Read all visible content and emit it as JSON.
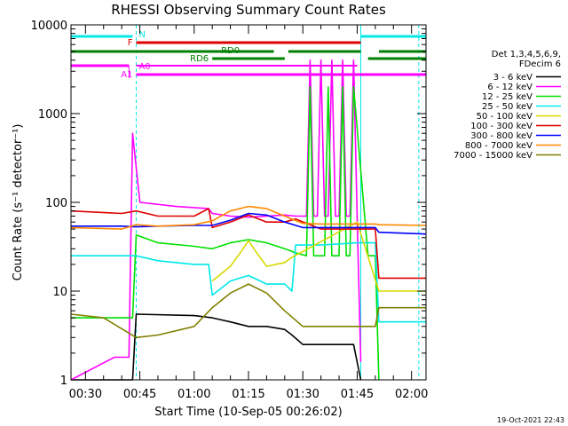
{
  "chart_data": {
    "type": "line",
    "title": "RHESSI Observing Summary Count Rates",
    "xlabel": "Start Time (10-Sep-05 00:26:02)",
    "ylabel": "Count Rate (s⁻¹ detector⁻¹)",
    "y_scale": "log",
    "ylim": [
      1,
      10000
    ],
    "xlim": [
      "00:26",
      "02:04"
    ],
    "x_tick_labels": [
      "00:30",
      "00:45",
      "01:00",
      "01:15",
      "01:30",
      "01:45",
      "02:00"
    ],
    "y_tick_labels": [
      "1",
      "10",
      "100",
      "1000",
      "10000"
    ],
    "timestamp": "19-Oct-2021 22:43",
    "legend": {
      "position": "right",
      "header": [
        "Det 1,3,4,5,6,9,",
        "FDecim 6"
      ],
      "entries": [
        {
          "label": "3 - 6 keV",
          "color": "#000000"
        },
        {
          "label": "6 - 12 keV",
          "color": "#ff00ff"
        },
        {
          "label": "12 - 25 keV",
          "color": "#00e000"
        },
        {
          "label": "25 - 50 keV",
          "color": "#00e8e8"
        },
        {
          "label": "50 - 100 keV",
          "color": "#d8d800"
        },
        {
          "label": "100 - 300 keV",
          "color": "#e00000"
        },
        {
          "label": "300 - 800 keV",
          "color": "#0000ff"
        },
        {
          "label": "800 - 7000 keV",
          "color": "#ff8800"
        },
        {
          "label": "7000 - 15000 keV",
          "color": "#808000"
        }
      ]
    },
    "flags": [
      {
        "label": "N",
        "color": "#00e8e8"
      },
      {
        "label": "F",
        "color": "#e00000"
      },
      {
        "label": "RD0",
        "color": "#008000"
      },
      {
        "label": "RD6",
        "color": "#008000"
      },
      {
        "label": "A0",
        "color": "#ff00ff"
      },
      {
        "label": "A1",
        "color": "#ff00ff"
      }
    ],
    "series": [
      {
        "name": "3 - 6 keV",
        "color": "#000000",
        "x": [
          "00:26",
          "00:40",
          "00:43",
          "00:44",
          "01:00",
          "01:05",
          "01:10",
          "01:15",
          "01:20",
          "01:25",
          "01:27",
          "01:30",
          "01:35",
          "01:40",
          "01:44",
          "01:46"
        ],
        "values": [
          1,
          1,
          1,
          5.5,
          5.3,
          5,
          4.5,
          4,
          4,
          3.7,
          3.2,
          2.5,
          2.5,
          2.5,
          2.5,
          1
        ]
      },
      {
        "name": "6 - 12 keV",
        "color": "#ff00ff",
        "x": [
          "00:26",
          "00:38",
          "00:42",
          "00:43",
          "00:45",
          "00:55",
          "01:04",
          "01:05",
          "01:10",
          "01:15",
          "01:20",
          "01:25",
          "01:28",
          "01:31",
          "01:32",
          "01:33",
          "01:34",
          "01:35",
          "01:36",
          "01:37",
          "01:38",
          "01:39",
          "01:40",
          "01:41",
          "01:42",
          "01:43",
          "01:44",
          "01:45",
          "01:46"
        ],
        "values": [
          1,
          1.8,
          1.8,
          600,
          100,
          90,
          85,
          75,
          70,
          68,
          70,
          72,
          70,
          70,
          4000,
          70,
          70,
          4000,
          70,
          70,
          4000,
          70,
          70,
          4000,
          70,
          70,
          4000,
          70,
          1.6
        ]
      },
      {
        "name": "12 - 25 keV",
        "color": "#00e000",
        "x": [
          "00:26",
          "00:43",
          "00:44",
          "00:50",
          "01:00",
          "01:05",
          "01:10",
          "01:15",
          "01:20",
          "01:25",
          "01:28",
          "01:31",
          "01:32",
          "01:33",
          "01:36",
          "01:37",
          "01:38",
          "01:40",
          "01:41",
          "01:42",
          "01:43",
          "01:44",
          "01:48",
          "01:50",
          "01:51"
        ],
        "values": [
          5,
          5,
          43,
          35,
          32,
          30,
          35,
          38,
          35,
          30,
          27,
          25,
          2000,
          25,
          25,
          2000,
          25,
          25,
          2000,
          25,
          25,
          2000,
          25,
          25,
          1
        ]
      },
      {
        "name": "25 - 50 keV",
        "color": "#00e8e8",
        "x": [
          "00:26",
          "00:44",
          "00:50",
          "01:00",
          "01:04",
          "01:05",
          "01:10",
          "01:15",
          "01:20",
          "01:25",
          "01:27",
          "01:28",
          "01:35",
          "01:45",
          "01:50",
          "01:51",
          "02:00",
          "02:04"
        ],
        "values": [
          25,
          25,
          22,
          20,
          20,
          9,
          13,
          15,
          12,
          12,
          10,
          33,
          33,
          35,
          35,
          4.5,
          4.5,
          4.5
        ]
      },
      {
        "name": "50 - 100 keV",
        "color": "#d8d800",
        "x": [
          "01:05",
          "01:10",
          "01:13",
          "01:15",
          "01:17",
          "01:20",
          "01:25",
          "01:27",
          "01:45",
          "01:51",
          "02:04"
        ],
        "values": [
          13,
          19,
          28,
          37,
          28,
          19,
          21,
          24,
          60,
          10,
          10
        ]
      },
      {
        "name": "100 - 300 keV",
        "color": "#e00000",
        "x": [
          "00:26",
          "00:40",
          "00:44",
          "00:50",
          "01:00",
          "01:04",
          "01:05",
          "01:10",
          "01:15",
          "01:20",
          "01:25",
          "01:28",
          "01:35",
          "01:45",
          "01:50",
          "01:51",
          "02:04"
        ],
        "values": [
          80,
          75,
          80,
          70,
          70,
          85,
          52,
          60,
          72,
          60,
          60,
          65,
          50,
          50,
          50,
          14,
          14
        ]
      },
      {
        "name": "300 - 800 keV",
        "color": "#0000ff",
        "x": [
          "00:26",
          "00:40",
          "00:44",
          "00:50",
          "01:00",
          "01:05",
          "01:10",
          "01:15",
          "01:20",
          "01:25",
          "01:30",
          "01:35",
          "01:45",
          "01:50",
          "01:51",
          "02:04"
        ],
        "values": [
          54,
          54,
          53,
          54,
          55,
          55,
          63,
          75,
          72,
          60,
          52,
          52,
          52,
          52,
          46,
          44
        ]
      },
      {
        "name": "800 - 7000 keV",
        "color": "#ff8800",
        "x": [
          "00:26",
          "00:40",
          "00:44",
          "00:50",
          "01:00",
          "01:05",
          "01:10",
          "01:15",
          "01:20",
          "01:25",
          "01:30",
          "01:35",
          "01:45",
          "01:50",
          "01:51",
          "02:04"
        ],
        "values": [
          52,
          50,
          56,
          54,
          56,
          62,
          80,
          90,
          85,
          70,
          58,
          57,
          57,
          57,
          56,
          55
        ]
      },
      {
        "name": "7000 - 15000 keV",
        "color": "#808000",
        "x": [
          "00:26",
          "00:35",
          "00:44",
          "00:50",
          "01:00",
          "01:05",
          "01:10",
          "01:15",
          "01:20",
          "01:25",
          "01:30",
          "01:35",
          "01:45",
          "01:50",
          "01:51",
          "02:04"
        ],
        "values": [
          5.5,
          5,
          3,
          3.2,
          4,
          6.5,
          9.5,
          12,
          9.5,
          6,
          4,
          4,
          4,
          4,
          6.5,
          6.5
        ]
      }
    ]
  }
}
